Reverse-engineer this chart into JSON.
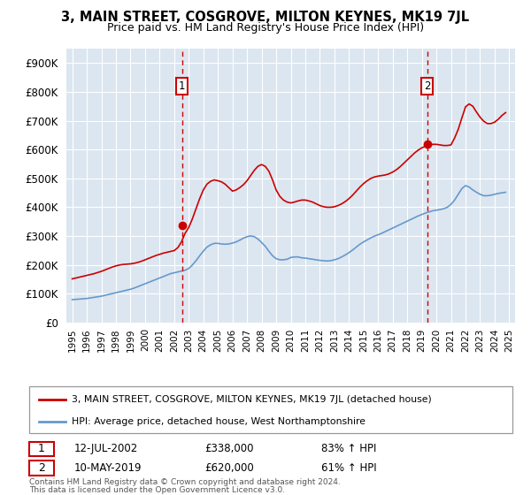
{
  "title": "3, MAIN STREET, COSGROVE, MILTON KEYNES, MK19 7JL",
  "subtitle": "Price paid vs. HM Land Registry's House Price Index (HPI)",
  "red_label": "3, MAIN STREET, COSGROVE, MILTON KEYNES, MK19 7JL (detached house)",
  "blue_label": "HPI: Average price, detached house, West Northamptonshire",
  "annotation1": {
    "label": "1",
    "date": "12-JUL-2002",
    "price": 338000,
    "hpi_pct": "83% ↑ HPI",
    "x_year": 2002.53
  },
  "annotation2": {
    "label": "2",
    "date": "10-MAY-2019",
    "price": 620000,
    "hpi_pct": "61% ↑ HPI",
    "x_year": 2019.36
  },
  "footer1": "Contains HM Land Registry data © Crown copyright and database right 2024.",
  "footer2": "This data is licensed under the Open Government Licence v3.0.",
  "red_color": "#cc0000",
  "blue_color": "#6699cc",
  "background_color": "#dce6f0",
  "ylim": [
    0,
    950000
  ],
  "xlim_left": 1994.6,
  "xlim_right": 2025.4,
  "hpi_data": {
    "years": [
      1995.0,
      1995.25,
      1995.5,
      1995.75,
      1996.0,
      1996.25,
      1996.5,
      1996.75,
      1997.0,
      1997.25,
      1997.5,
      1997.75,
      1998.0,
      1998.25,
      1998.5,
      1998.75,
      1999.0,
      1999.25,
      1999.5,
      1999.75,
      2000.0,
      2000.25,
      2000.5,
      2000.75,
      2001.0,
      2001.25,
      2001.5,
      2001.75,
      2002.0,
      2002.25,
      2002.5,
      2002.75,
      2003.0,
      2003.25,
      2003.5,
      2003.75,
      2004.0,
      2004.25,
      2004.5,
      2004.75,
      2005.0,
      2005.25,
      2005.5,
      2005.75,
      2006.0,
      2006.25,
      2006.5,
      2006.75,
      2007.0,
      2007.25,
      2007.5,
      2007.75,
      2008.0,
      2008.25,
      2008.5,
      2008.75,
      2009.0,
      2009.25,
      2009.5,
      2009.75,
      2010.0,
      2010.25,
      2010.5,
      2010.75,
      2011.0,
      2011.25,
      2011.5,
      2011.75,
      2012.0,
      2012.25,
      2012.5,
      2012.75,
      2013.0,
      2013.25,
      2013.5,
      2013.75,
      2014.0,
      2014.25,
      2014.5,
      2014.75,
      2015.0,
      2015.25,
      2015.5,
      2015.75,
      2016.0,
      2016.25,
      2016.5,
      2016.75,
      2017.0,
      2017.25,
      2017.5,
      2017.75,
      2018.0,
      2018.25,
      2018.5,
      2018.75,
      2019.0,
      2019.25,
      2019.5,
      2019.75,
      2020.0,
      2020.25,
      2020.5,
      2020.75,
      2021.0,
      2021.25,
      2021.5,
      2021.75,
      2022.0,
      2022.25,
      2022.5,
      2022.75,
      2023.0,
      2023.25,
      2023.5,
      2023.75,
      2024.0,
      2024.25,
      2024.5,
      2024.75
    ],
    "values": [
      80000,
      81000,
      82000,
      83000,
      84000,
      86000,
      88000,
      90000,
      92000,
      95000,
      98000,
      101000,
      104000,
      107000,
      110000,
      113000,
      116000,
      120000,
      125000,
      130000,
      135000,
      140000,
      145000,
      150000,
      155000,
      160000,
      165000,
      170000,
      173000,
      176000,
      179000,
      182000,
      188000,
      200000,
      215000,
      232000,
      248000,
      262000,
      270000,
      275000,
      275000,
      273000,
      272000,
      273000,
      276000,
      280000,
      286000,
      293000,
      298000,
      301000,
      298000,
      290000,
      278000,
      265000,
      248000,
      232000,
      222000,
      218000,
      218000,
      220000,
      226000,
      228000,
      228000,
      225000,
      224000,
      222000,
      220000,
      218000,
      216000,
      215000,
      214000,
      215000,
      218000,
      222000,
      228000,
      235000,
      243000,
      252000,
      262000,
      272000,
      280000,
      287000,
      294000,
      300000,
      305000,
      310000,
      316000,
      322000,
      328000,
      334000,
      340000,
      346000,
      352000,
      358000,
      364000,
      370000,
      375000,
      380000,
      384000,
      388000,
      390000,
      392000,
      395000,
      400000,
      410000,
      425000,
      445000,
      465000,
      475000,
      470000,
      460000,
      452000,
      445000,
      440000,
      440000,
      442000,
      445000,
      448000,
      450000,
      452000
    ]
  },
  "red_data": {
    "years": [
      1995.0,
      1995.25,
      1995.5,
      1995.75,
      1996.0,
      1996.25,
      1996.5,
      1996.75,
      1997.0,
      1997.25,
      1997.5,
      1997.75,
      1998.0,
      1998.25,
      1998.5,
      1998.75,
      1999.0,
      1999.25,
      1999.5,
      1999.75,
      2000.0,
      2000.25,
      2000.5,
      2000.75,
      2001.0,
      2001.25,
      2001.5,
      2001.75,
      2002.0,
      2002.25,
      2002.5,
      2002.75,
      2003.0,
      2003.25,
      2003.5,
      2003.75,
      2004.0,
      2004.25,
      2004.5,
      2004.75,
      2005.0,
      2005.25,
      2005.5,
      2005.75,
      2006.0,
      2006.25,
      2006.5,
      2006.75,
      2007.0,
      2007.25,
      2007.5,
      2007.75,
      2008.0,
      2008.25,
      2008.5,
      2008.75,
      2009.0,
      2009.25,
      2009.5,
      2009.75,
      2010.0,
      2010.25,
      2010.5,
      2010.75,
      2011.0,
      2011.25,
      2011.5,
      2011.75,
      2012.0,
      2012.25,
      2012.5,
      2012.75,
      2013.0,
      2013.25,
      2013.5,
      2013.75,
      2014.0,
      2014.25,
      2014.5,
      2014.75,
      2015.0,
      2015.25,
      2015.5,
      2015.75,
      2016.0,
      2016.25,
      2016.5,
      2016.75,
      2017.0,
      2017.25,
      2017.5,
      2017.75,
      2018.0,
      2018.25,
      2018.5,
      2018.75,
      2019.0,
      2019.25,
      2019.5,
      2019.75,
      2020.0,
      2020.25,
      2020.5,
      2020.75,
      2021.0,
      2021.25,
      2021.5,
      2021.75,
      2022.0,
      2022.25,
      2022.5,
      2022.75,
      2023.0,
      2023.25,
      2023.5,
      2023.75,
      2024.0,
      2024.25,
      2024.5,
      2024.75
    ],
    "values": [
      152000,
      155000,
      158000,
      161000,
      164000,
      167000,
      170000,
      174000,
      178000,
      183000,
      188000,
      193000,
      197000,
      200000,
      202000,
      203000,
      204000,
      206000,
      209000,
      213000,
      218000,
      223000,
      228000,
      233000,
      237000,
      241000,
      244000,
      247000,
      250000,
      260000,
      280000,
      310000,
      330000,
      360000,
      395000,
      430000,
      460000,
      480000,
      490000,
      495000,
      492000,
      488000,
      480000,
      468000,
      456000,
      460000,
      468000,
      478000,
      492000,
      510000,
      528000,
      542000,
      548000,
      542000,
      525000,
      495000,
      460000,
      438000,
      425000,
      418000,
      415000,
      418000,
      422000,
      425000,
      425000,
      422000,
      418000,
      412000,
      406000,
      402000,
      400000,
      400000,
      402000,
      406000,
      412000,
      420000,
      430000,
      442000,
      456000,
      470000,
      482000,
      492000,
      500000,
      505000,
      508000,
      510000,
      512000,
      516000,
      522000,
      530000,
      540000,
      552000,
      564000,
      576000,
      588000,
      598000,
      606000,
      612000,
      616000,
      618000,
      618000,
      616000,
      614000,
      614000,
      616000,
      640000,
      670000,
      710000,
      748000,
      758000,
      750000,
      730000,
      712000,
      698000,
      690000,
      690000,
      695000,
      705000,
      718000,
      728000
    ]
  }
}
